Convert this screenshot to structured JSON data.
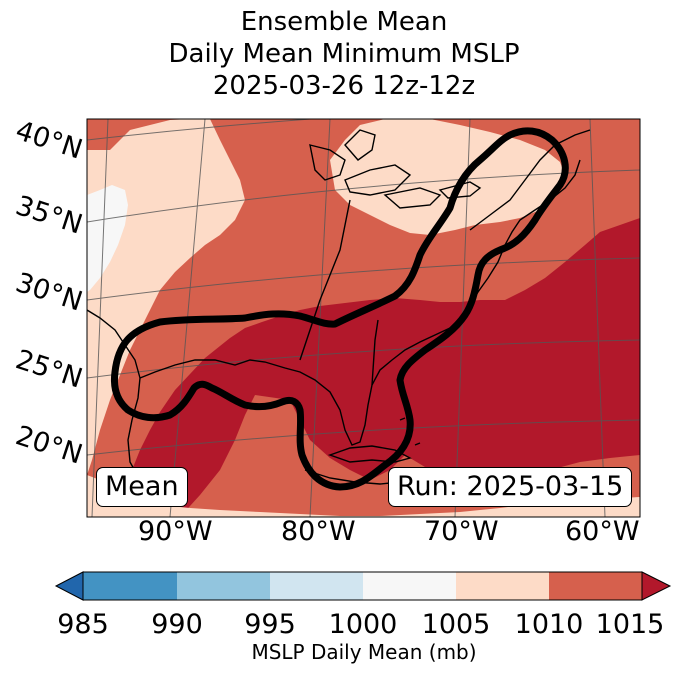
{
  "title": {
    "line1": "Ensemble Mean",
    "line2": "Daily Mean Minimum MSLP",
    "line3": "2025-03-26 12z-12z"
  },
  "map": {
    "lat_labels": [
      "40°N",
      "35°N",
      "30°N",
      "25°N",
      "20°N"
    ],
    "lon_labels": [
      "90°W",
      "80°W",
      "70°W",
      "60°W"
    ],
    "fill_colors": {
      "lt_1000": "#f7f7f7",
      "1005_1010": "#fddbc7",
      "1010_1015": "#d6604d",
      "gt_1015": "#b2182b"
    },
    "contour_color": "#000000",
    "left_box": "Mean",
    "right_box": "Run: 2025-03-15"
  },
  "colorbar": {
    "label": "MSLP Daily Mean (mb)",
    "ticks": [
      "985",
      "990",
      "995",
      "1000",
      "1005",
      "1010",
      "1015"
    ],
    "colors": [
      "#4393c3",
      "#92c5de",
      "#d1e5f0",
      "#f7f7f7",
      "#fddbc7",
      "#d6604d"
    ],
    "under_color": "#2166ac",
    "over_color": "#b2182b"
  }
}
